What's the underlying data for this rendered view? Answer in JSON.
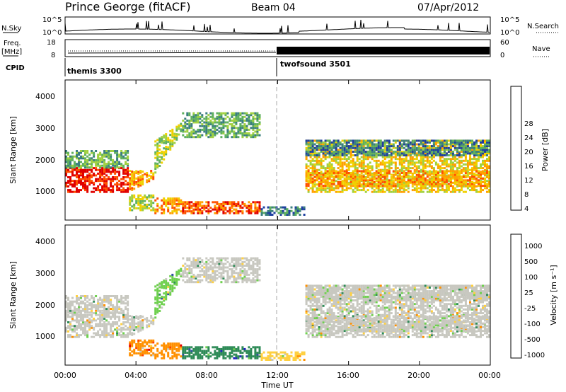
{
  "header": {
    "station": "Prince George (fitACF)",
    "beam": "Beam 04",
    "date": "07/Apr/2012"
  },
  "panels": {
    "nsky_label": "N.Sky",
    "nsky_ticks": [
      "10^5",
      "10^0"
    ],
    "nsearch_label": "N.Search",
    "freq_label": "Freq.",
    "freq_unit": "[MHz]",
    "freq_ticks": [
      "18",
      "8"
    ],
    "nave_label": "Nave",
    "nave_ticks": [
      "60",
      "0"
    ],
    "cpid_label": "CPID",
    "cpid_1": "themis 3300",
    "cpid_2": "twofsound 3501"
  },
  "power_panel": {
    "ylabel": "Slant Range [km]",
    "yticks": [
      "4000",
      "3000",
      "2000",
      "1000"
    ],
    "colorbar_label": "Power [dB]",
    "colorbar_ticks": [
      "28",
      "24",
      "20",
      "16",
      "12",
      "8",
      "4"
    ],
    "colors": [
      "#0000ff",
      "#1f3fa0",
      "#3b7f7f",
      "#5fb05f",
      "#a0d040",
      "#f0d000",
      "#ffa000",
      "#ff5000",
      "#e00000"
    ]
  },
  "velocity_panel": {
    "ylabel": "Slant Range [km]",
    "yticks": [
      "4000",
      "3000",
      "2000",
      "1000"
    ],
    "colorbar_label": "Velocity  [m s⁻¹]",
    "colorbar_ticks": [
      "1000",
      "500",
      "100",
      "25",
      "-25",
      "-100",
      "-500",
      "-1000"
    ],
    "colors": [
      "#2020c0",
      "#3050a0",
      "#2e8b57",
      "#6fd04f",
      "#c8c8c0",
      "#ffd040",
      "#ff9000",
      "#ff4000",
      "#e00000"
    ]
  },
  "xaxis": {
    "label": "Time UT",
    "ticks": [
      "00:00",
      "04:00",
      "08:00",
      "12:00",
      "16:00",
      "20:00",
      "00:00"
    ]
  },
  "chart_data": {
    "type": "heatmap",
    "title": "Prince George (fitACF)",
    "panels": [
      {
        "name": "Power",
        "xlabel": "Time UT",
        "ylabel": "Slant Range [km]",
        "xlim": [
          0,
          24
        ],
        "ylim": [
          0,
          4600
        ],
        "colorbar": {
          "label": "Power [dB]",
          "range": [
            0,
            30
          ]
        }
      },
      {
        "name": "Velocity",
        "xlabel": "Time UT",
        "ylabel": "Slant Range [km]",
        "xlim": [
          0,
          24
        ],
        "ylim": [
          0,
          4600
        ],
        "colorbar": {
          "label": "Velocity [m s-1]",
          "range": [
            -1000,
            1000
          ]
        }
      }
    ],
    "cpid_change_hour": 12
  }
}
